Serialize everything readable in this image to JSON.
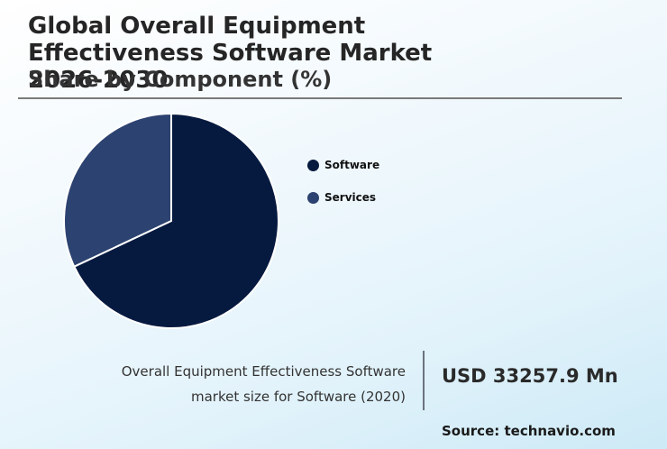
{
  "header": {
    "title": "Global Overall Equipment Effectiveness Software Market 2026-2030",
    "subtitle": "Share by Component (%)"
  },
  "chart_data": {
    "type": "pie",
    "title": "Global Overall Equipment Effectiveness Software Market 2026-2030",
    "subtitle": "Share by Component (%)",
    "categories": [
      "Software",
      "Services"
    ],
    "values": [
      68,
      32
    ],
    "colors": [
      "#061a40",
      "#2c4270"
    ],
    "legend_position": "right"
  },
  "legend": {
    "items": [
      {
        "label": "Software",
        "color": "#061a40"
      },
      {
        "label": "Services",
        "color": "#2c4270"
      }
    ]
  },
  "stat": {
    "description_line1": "Overall Equipment Effectiveness Software",
    "description_line2": "market size for Software (2020)",
    "value": "USD 33257.9 Mn"
  },
  "footer": {
    "source": "Source: technavio.com"
  }
}
